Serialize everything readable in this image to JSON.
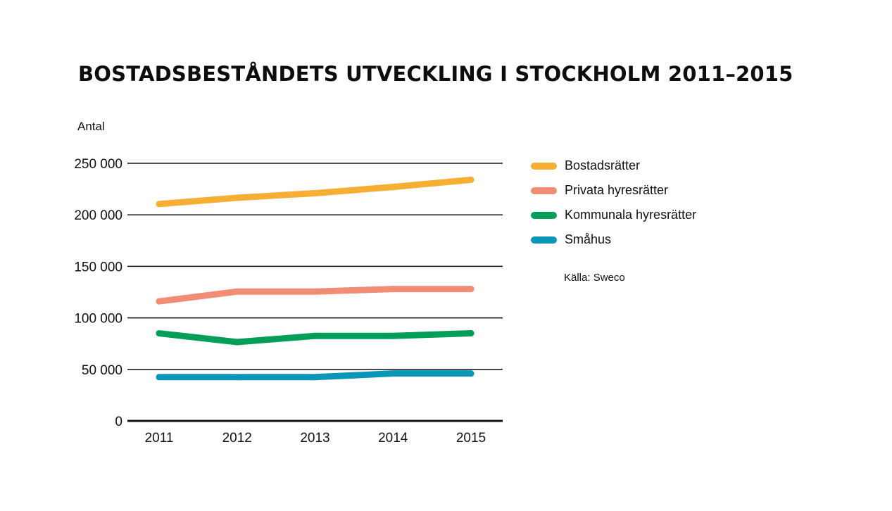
{
  "chart_data": {
    "type": "line",
    "title": "BOSTADSBESTÅNDETS UTVECKLING I STOCKHOLM 2011–2015",
    "ylabel": "Antal",
    "xlabel": "",
    "x": [
      "2011",
      "2012",
      "2013",
      "2014",
      "2015"
    ],
    "ylim": [
      0,
      250000
    ],
    "yticks": [
      0,
      50000,
      100000,
      150000,
      200000,
      250000
    ],
    "ytick_labels": [
      "0",
      "50 000",
      "100 000",
      "150 000",
      "200 000",
      "250 000"
    ],
    "grid": true,
    "legend_position": "right",
    "series": [
      {
        "name": "Bostadsrätter",
        "color": "#F7AE35",
        "values": [
          210500,
          216500,
          221000,
          227000,
          234000
        ]
      },
      {
        "name": "Privata hyresrätter",
        "color": "#F08D74",
        "values": [
          116000,
          125500,
          125500,
          128000,
          128000
        ]
      },
      {
        "name": "Kommunala hyresrätter",
        "color": "#009E58",
        "values": [
          85000,
          76500,
          82500,
          82500,
          85000
        ]
      },
      {
        "name": "Småhus",
        "color": "#0A96B6",
        "values": [
          42500,
          42500,
          42500,
          46000,
          46000
        ]
      }
    ],
    "source": "Källa: Sweco"
  }
}
